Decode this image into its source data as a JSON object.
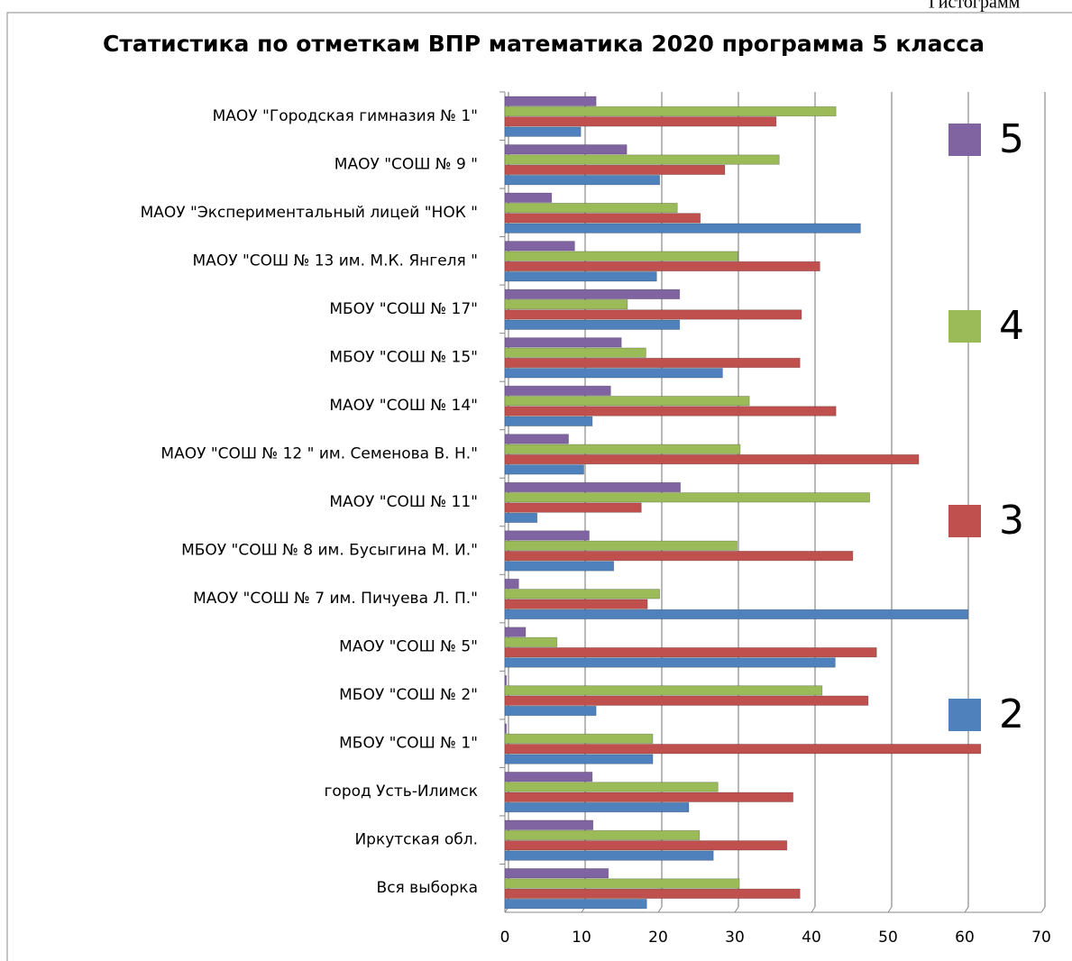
{
  "chart_data": {
    "type": "bar",
    "orientation": "horizontal",
    "caption": "Гистограмм",
    "title": "Статистика по отметкам  ВПР математика 2020 программа 5 класса",
    "categories": [
      "МАОУ \"Городская гимназия № 1\"",
      "МАОУ \"СОШ № 9 \"",
      "МАОУ \"Экспериментальный лицей  \"НОК  \"",
      "МАОУ \"СОШ № 13 им.  М.К. Янгеля  \"",
      "МБОУ \"СОШ № 17\"",
      "МБОУ \"СОШ № 15\"",
      "МАОУ \"СОШ № 14\"",
      "МАОУ \"СОШ № 12 \" им. Семенова В. Н.\"",
      "МАОУ \"СОШ № 11\"",
      "МБОУ \"СОШ № 8 им. Бусыгина М. И.\"",
      "МАОУ \"СОШ № 7 им. Пичуева Л. П.\"",
      "МАОУ \"СОШ № 5\"",
      "МБОУ \"СОШ № 2\"",
      "МБОУ \"СОШ № 1\"",
      "город Усть-Илимск",
      "Иркутская обл.",
      "Вся выборка"
    ],
    "series": [
      {
        "name": "2",
        "color": "#4f81bd",
        "values": [
          9.9,
          20.2,
          46.4,
          19.8,
          22.8,
          28.4,
          11.4,
          10.3,
          4.2,
          14.2,
          60.4,
          43.1,
          11.9,
          19.3,
          24,
          27.2,
          18.5
        ]
      },
      {
        "name": "3",
        "color": "#c0504d",
        "values": [
          35.4,
          28.7,
          25.5,
          41.1,
          38.7,
          38.5,
          43.2,
          54,
          17.8,
          45.4,
          18.6,
          48.5,
          47.4,
          62.1,
          37.6,
          36.8,
          38.5
        ]
      },
      {
        "name": "4",
        "color": "#9bbb59",
        "values": [
          43.2,
          35.8,
          22.5,
          30.4,
          16,
          18.4,
          31.9,
          30.7,
          47.6,
          30.3,
          20.2,
          6.8,
          41.4,
          19.3,
          27.8,
          25.4,
          30.6
        ]
      },
      {
        "name": "5",
        "color": "#8064a2",
        "values": [
          11.9,
          15.9,
          6.1,
          9.1,
          22.8,
          15.2,
          13.8,
          8.3,
          22.9,
          11,
          1.8,
          2.7,
          0.2,
          0.2,
          11.4,
          11.5,
          13.5
        ]
      }
    ],
    "xlim": [
      0,
      70
    ],
    "xticks": [
      0,
      10,
      20,
      30,
      40,
      50,
      60,
      70
    ],
    "grid": true,
    "legend": "right"
  }
}
